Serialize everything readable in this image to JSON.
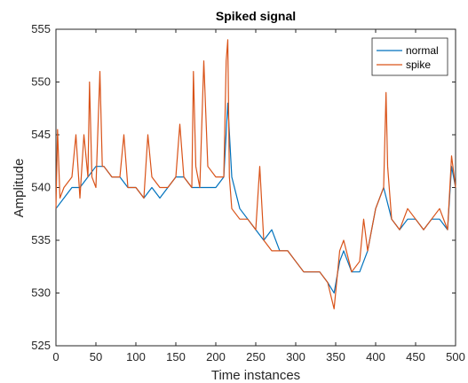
{
  "chart_data": {
    "type": "line",
    "title": "Spiked signal",
    "xlabel": "Time instances",
    "ylabel": "Amplitude",
    "xlim": [
      0,
      500
    ],
    "ylim": [
      525,
      555
    ],
    "xticks": [
      0,
      50,
      100,
      150,
      200,
      250,
      300,
      350,
      400,
      450,
      500
    ],
    "yticks": [
      525,
      530,
      535,
      540,
      545,
      550,
      555
    ],
    "grid": false,
    "legend_position": "top-right",
    "series": [
      {
        "name": "normal",
        "color": "#0072BD",
        "x": [
          0,
          10,
          20,
          30,
          40,
          50,
          60,
          70,
          80,
          90,
          100,
          110,
          120,
          130,
          140,
          150,
          160,
          170,
          180,
          190,
          200,
          210,
          215,
          220,
          230,
          240,
          250,
          260,
          270,
          280,
          290,
          300,
          310,
          320,
          330,
          340,
          348,
          355,
          360,
          370,
          380,
          390,
          400,
          410,
          420,
          430,
          440,
          450,
          460,
          470,
          480,
          490,
          495,
          500
        ],
        "values": [
          538,
          539,
          540,
          540,
          541,
          542,
          542,
          541,
          541,
          540,
          540,
          539,
          540,
          539,
          540,
          541,
          541,
          540,
          540,
          540,
          540,
          541,
          548,
          541,
          538,
          537,
          536,
          535,
          536,
          534,
          534,
          533,
          532,
          532,
          532,
          531,
          530,
          533,
          534,
          532,
          532,
          534,
          538,
          540,
          537,
          536,
          537,
          537,
          536,
          537,
          537,
          536,
          542,
          540
        ]
      },
      {
        "name": "spike",
        "color": "#D95319",
        "x": [
          0,
          2,
          5,
          10,
          20,
          25,
          30,
          35,
          40,
          42,
          45,
          50,
          55,
          58,
          60,
          70,
          80,
          85,
          90,
          100,
          110,
          115,
          120,
          130,
          140,
          150,
          155,
          160,
          170,
          172,
          175,
          180,
          185,
          190,
          200,
          210,
          213,
          215,
          217,
          220,
          230,
          240,
          250,
          255,
          260,
          270,
          280,
          290,
          300,
          310,
          320,
          330,
          340,
          348,
          355,
          360,
          370,
          380,
          385,
          390,
          400,
          410,
          413,
          415,
          420,
          430,
          440,
          450,
          460,
          470,
          480,
          490,
          495,
          500
        ],
        "values": [
          538,
          545.5,
          539,
          540,
          541,
          545,
          539,
          545,
          541,
          550,
          541,
          540,
          551,
          542,
          542,
          541,
          541,
          545,
          540,
          540,
          539,
          545,
          541,
          540,
          540,
          541,
          546,
          541,
          540,
          551,
          542,
          540,
          552,
          542,
          541,
          541,
          552,
          554,
          541,
          538,
          537,
          537,
          536,
          542,
          535,
          534,
          534,
          534,
          533,
          532,
          532,
          532,
          531,
          528.5,
          534,
          535,
          532,
          533,
          537,
          534,
          538,
          540,
          549,
          542,
          537,
          536,
          538,
          537,
          536,
          537,
          538,
          536,
          543,
          540
        ]
      }
    ]
  }
}
